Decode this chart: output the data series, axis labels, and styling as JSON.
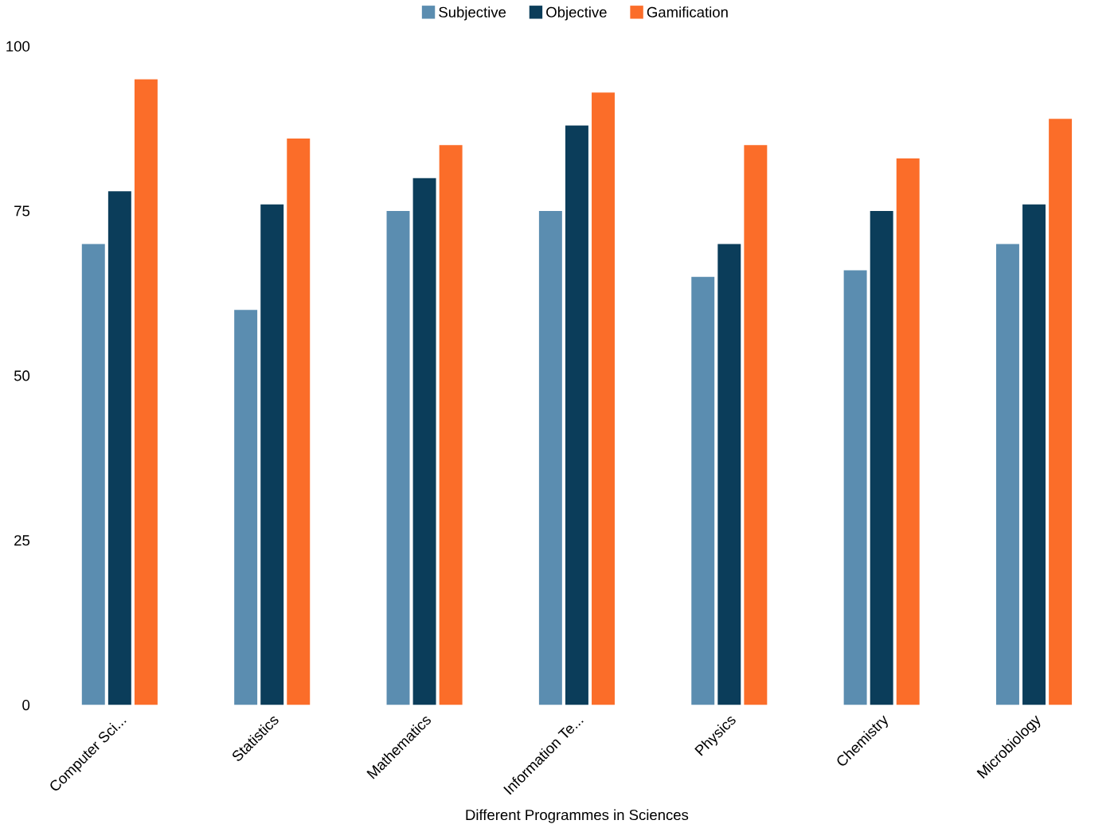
{
  "chart_data": {
    "type": "bar",
    "xlabel": "Different Programmes in Sciences",
    "categories": [
      "Computer Sci...",
      "Statistics",
      "Mathematics",
      "Information Te...",
      "Physics",
      "Chemistry",
      "Microbiology"
    ],
    "series": [
      {
        "name": "Subjective",
        "color": "#5b8db0",
        "values": [
          70,
          60,
          75,
          75,
          65,
          66,
          70
        ]
      },
      {
        "name": "Objective",
        "color": "#0b3d5a",
        "values": [
          78,
          76,
          80,
          88,
          70,
          75,
          76
        ]
      },
      {
        "name": "Gamification",
        "color": "#fb6d29",
        "values": [
          95,
          86,
          85,
          93,
          85,
          83,
          89
        ]
      }
    ],
    "ylim": [
      0,
      100
    ],
    "yticks": [
      0,
      25,
      50,
      75,
      100
    ],
    "grid": false,
    "legend": "top"
  }
}
